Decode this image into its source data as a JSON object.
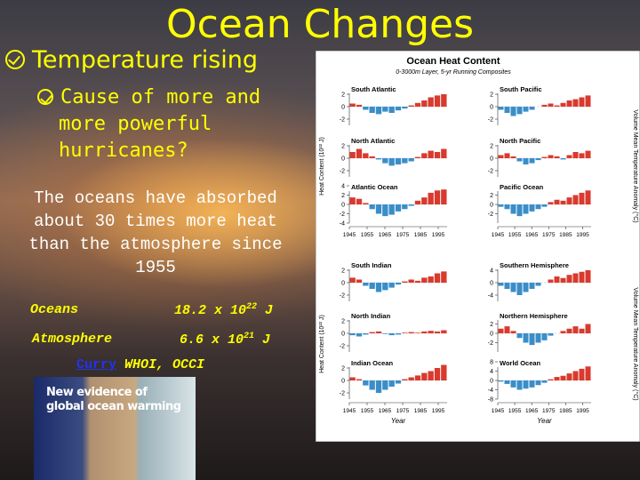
{
  "slide": {
    "title": "Ocean Changes",
    "bullet": "Temperature rising",
    "sub_bullet_lines": [
      "Cause of more and",
      "more powerful",
      "hurricanes?"
    ],
    "paragraph_lines": [
      "The oceans have absorbed",
      "about 30 times more heat",
      "than the atmosphere since",
      "1955"
    ],
    "table": [
      {
        "label": "Oceans",
        "mantissa": "18.2 x 10",
        "exponent": "22",
        "unit": "J"
      },
      {
        "label": "Atmosphere",
        "mantissa": "6.6 x 10",
        "exponent": "21",
        "unit": "J"
      }
    ],
    "source_link": "Curry",
    "source_rest": "WHOI, OCCI",
    "book_title_lines": [
      "New evidence of",
      "global ocean warming"
    ]
  },
  "figure": {
    "title": "Ocean Heat Content",
    "subtitle": "0-3000m Layer, 5-yr Running Composites",
    "y_label": "Heat Content (10²² J)",
    "y2_label": "Volume Mean Temperature Anomaly (°C)",
    "x_label": "Year",
    "xlim": [
      1945,
      2000
    ],
    "xticks": [
      1945,
      1955,
      1965,
      1975,
      1985,
      1995
    ],
    "panels": [
      {
        "name": "South Atlantic",
        "ylim": [
          -3,
          3
        ],
        "yticks": [
          2,
          0,
          -2
        ],
        "values": [
          0.5,
          0.3,
          -0.5,
          -1,
          -1.2,
          -0.8,
          -1,
          -0.6,
          -0.3,
          0.2,
          0.6,
          1,
          1.5,
          1.8,
          2
        ]
      },
      {
        "name": "North Atlantic",
        "ylim": [
          -3,
          3
        ],
        "yticks": [
          2,
          0,
          -2
        ],
        "values": [
          1,
          1.5,
          0.8,
          0.3,
          -0.2,
          -0.8,
          -1.2,
          -1,
          -0.8,
          -0.5,
          0.2,
          0.8,
          1.2,
          1,
          1.5
        ]
      },
      {
        "name": "Atlantic Ocean",
        "ylim": [
          -4,
          4
        ],
        "yticks": [
          4,
          2,
          0,
          -2,
          -4
        ],
        "values": [
          1.5,
          1.2,
          0.3,
          -1,
          -2,
          -2.5,
          -2.2,
          -1.5,
          -1,
          -0.3,
          0.8,
          1.5,
          2.5,
          3,
          3.2
        ]
      },
      {
        "name": "South Indian",
        "ylim": [
          -3,
          3
        ],
        "yticks": [
          2,
          0,
          -2
        ],
        "values": [
          0.8,
          0.5,
          -0.5,
          -1,
          -1.5,
          -1.2,
          -0.8,
          -0.3,
          0.2,
          0.5,
          0.3,
          0.8,
          1,
          1.5,
          1.8
        ]
      },
      {
        "name": "North Indian",
        "ylim": [
          -3,
          3
        ],
        "yticks": [
          2,
          0,
          -2
        ],
        "values": [
          -0.3,
          -0.5,
          -0.2,
          0.2,
          0.3,
          -0.1,
          -0.3,
          -0.2,
          0.1,
          0.2,
          0.1,
          0.3,
          0.4,
          0.3,
          0.5
        ]
      },
      {
        "name": "Indian Ocean",
        "ylim": [
          -3,
          3
        ],
        "yticks": [
          2,
          0,
          -2
        ],
        "values": [
          0.5,
          0.2,
          -0.8,
          -1.5,
          -2,
          -1.5,
          -1,
          -0.5,
          0.2,
          0.5,
          0.8,
          1.2,
          1.5,
          2,
          2.5
        ]
      },
      {
        "name": "South Pacific",
        "ylim": [
          -3,
          3
        ],
        "yticks": [
          2,
          0,
          -2
        ],
        "values": [
          -0.5,
          -1,
          -1.5,
          -1.2,
          -0.8,
          -0.5,
          0,
          0.3,
          0.5,
          0.2,
          0.6,
          1,
          1.2,
          1.5,
          1.8
        ]
      },
      {
        "name": "North Pacific",
        "ylim": [
          -3,
          3
        ],
        "yticks": [
          2,
          0,
          -2
        ],
        "values": [
          0.5,
          0.8,
          0.3,
          -0.5,
          -1,
          -0.8,
          -0.3,
          0.2,
          0.5,
          0.3,
          -0.2,
          0.5,
          1,
          0.8,
          1.2
        ]
      },
      {
        "name": "Pacific Ocean",
        "ylim": [
          -4,
          4
        ],
        "yticks": [
          2,
          0,
          -2
        ],
        "values": [
          -0.5,
          -1,
          -2,
          -2.5,
          -2,
          -1.5,
          -1,
          -0.5,
          0.5,
          1,
          0.8,
          1.5,
          2,
          2.5,
          3
        ]
      },
      {
        "name": "Southern Hemisphere",
        "ylim": [
          -6,
          6
        ],
        "yticks": [
          4,
          0,
          -4
        ],
        "values": [
          -1,
          -2,
          -3,
          -4,
          -3,
          -2,
          -1,
          0,
          1,
          2,
          1.5,
          2.5,
          3,
          3.5,
          4
        ]
      },
      {
        "name": "Northern Hemisphere",
        "ylim": [
          -4,
          4
        ],
        "yticks": [
          2,
          0,
          -2
        ],
        "values": [
          1,
          1.5,
          0.5,
          -1,
          -2,
          -2.5,
          -2,
          -1.5,
          -0.5,
          0,
          0.5,
          1,
          1.5,
          1,
          2
        ]
      },
      {
        "name": "World Ocean",
        "ylim": [
          -8,
          8
        ],
        "yticks": [
          8,
          4,
          0,
          -4,
          -8
        ],
        "values": [
          -0.5,
          -1.5,
          -3,
          -4,
          -3.5,
          -3,
          -2,
          -1,
          0.5,
          1.5,
          2,
          3,
          4,
          5,
          6
        ]
      }
    ]
  }
}
